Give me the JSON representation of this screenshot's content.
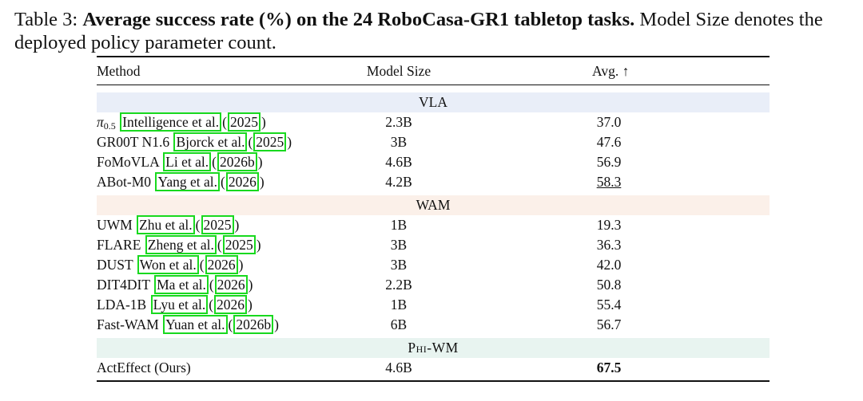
{
  "caption": {
    "label": "Table 3:",
    "bold": "Average success rate (%) on the 24 RoboCasa-GR1 tabletop tasks.",
    "rest": "Model Size denotes the deployed policy parameter count."
  },
  "headers": {
    "method": "Method",
    "size": "Model Size",
    "avg": "Avg. ↑"
  },
  "sections": [
    {
      "name": "VLA",
      "rows": [
        {
          "method": "π",
          "sub": "0.5",
          "cite": "Intelligence et al.",
          "year": "2025",
          "size": "2.3B",
          "avg": "37.0"
        },
        {
          "method": "GR00T N1.6",
          "cite": "Bjorck et al.",
          "year": "2025",
          "size": "3B",
          "avg": "47.6"
        },
        {
          "method": "FoMoVLA",
          "cite": "Li et al.",
          "year": "2026b",
          "size": "4.6B",
          "avg": "56.9"
        },
        {
          "method": "ABot-M0",
          "cite": "Yang et al.",
          "year": "2026",
          "size": "4.2B",
          "avg": "58.3"
        }
      ]
    },
    {
      "name": "WAM",
      "rows": [
        {
          "method": "UWM",
          "cite": "Zhu et al.",
          "year": "2025",
          "size": "1B",
          "avg": "19.3"
        },
        {
          "method": "FLARE",
          "cite": "Zheng et al.",
          "year": "2025",
          "size": "3B",
          "avg": "36.3"
        },
        {
          "method": "DUST",
          "cite": "Won et al.",
          "year": "2026",
          "size": "3B",
          "avg": "42.0"
        },
        {
          "method": "DIT4DIT",
          "cite": "Ma et al.",
          "year": "2026",
          "size": "2.2B",
          "avg": "50.8"
        },
        {
          "method": "LDA-1B",
          "cite": "Lyu et al.",
          "year": "2026",
          "size": "1B",
          "avg": "55.4"
        },
        {
          "method": "Fast-WAM",
          "cite": "Yuan et al.",
          "year": "2026b",
          "size": "6B",
          "avg": "56.7"
        }
      ]
    },
    {
      "name": "Phi-WM",
      "rows": [
        {
          "method": "ActEffect (Ours)",
          "size": "4.6B",
          "avg": "67.5"
        }
      ]
    }
  ],
  "highlight_color": "#18d91e"
}
